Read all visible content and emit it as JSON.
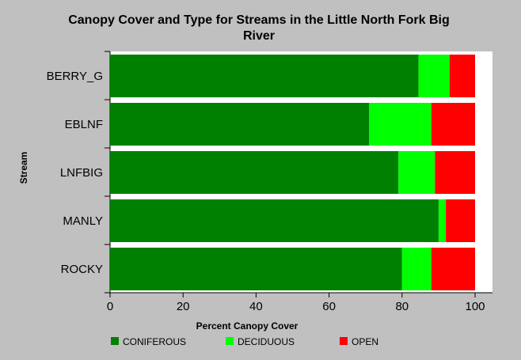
{
  "chart_data": {
    "type": "bar",
    "orientation": "horizontal",
    "stacked": true,
    "title": "Canopy Cover and Type for Streams in the Little North Fork Big River",
    "xlabel": "Percent Canopy Cover",
    "ylabel": "Stream",
    "xlim": [
      0,
      100
    ],
    "xticks": [
      "0",
      "20",
      "40",
      "60",
      "80",
      "100"
    ],
    "categories": [
      "BERRY_G",
      "EBLNF",
      "LNFBIG",
      "MANLY",
      "ROCKY"
    ],
    "series": [
      {
        "name": "CONIFEROUS",
        "color": "#008000",
        "values": [
          84.5,
          71,
          79,
          90,
          80
        ]
      },
      {
        "name": "DECIDUOUS",
        "color": "#00ff00",
        "values": [
          8.5,
          17,
          10,
          2,
          8
        ]
      },
      {
        "name": "OPEN",
        "color": "#ff0000",
        "values": [
          7,
          12,
          11,
          8,
          12
        ]
      }
    ],
    "grid": false,
    "legend": "bottom",
    "background": "#c0c0c0",
    "plot_background": "#ffffff"
  }
}
